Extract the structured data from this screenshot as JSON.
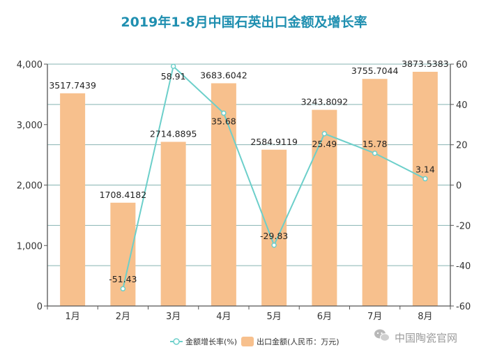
{
  "chart_data": {
    "type": "bar",
    "title": "2019年1-8月中国石英出口金额及增长率",
    "categories": [
      "1月",
      "2月",
      "3月",
      "4月",
      "5月",
      "6月",
      "7月",
      "8月"
    ],
    "series": [
      {
        "name": "出口金额(人民币：万元)",
        "type": "bar",
        "axis": "left",
        "values": [
          3517.7439,
          1708.4182,
          2714.8895,
          3683.6042,
          2584.9119,
          3243.8092,
          3755.7044,
          3873.5383
        ],
        "labels": [
          "3517.7439",
          "1708.4182",
          "2714.8895",
          "3683.6042",
          "2584.9119",
          "3243.8092",
          "3755.7044",
          "3873.5383"
        ]
      },
      {
        "name": "金额增长率(%)",
        "type": "line",
        "axis": "right",
        "values": [
          null,
          -51.43,
          58.91,
          35.68,
          -29.83,
          25.49,
          15.78,
          3.14
        ],
        "labels": [
          "",
          "-51.43",
          "58.91",
          "35.68",
          "-29.83",
          "25.49",
          "15.78",
          "3.14"
        ]
      }
    ],
    "y_left": {
      "lim": [
        0,
        4000
      ],
      "ticks": [
        0,
        1000,
        2000,
        3000,
        4000
      ],
      "tick_labels": [
        "0",
        "1,000",
        "2,000",
        "3,000",
        "4,000"
      ]
    },
    "y_right": {
      "lim": [
        -60,
        60
      ],
      "ticks": [
        -60,
        -40,
        -20,
        0,
        20,
        40,
        60
      ],
      "tick_labels": [
        "-60",
        "-40",
        "-20",
        "0",
        "20",
        "40",
        "60"
      ]
    },
    "legend_position": "bottom-center",
    "grid": true
  },
  "colors": {
    "title": "#1f8fb0",
    "bar": "#f7c08d",
    "line": "#6ccfca",
    "grid": "#5e9a98",
    "axis": "#555555"
  },
  "watermark": "中国陶瓷官网"
}
